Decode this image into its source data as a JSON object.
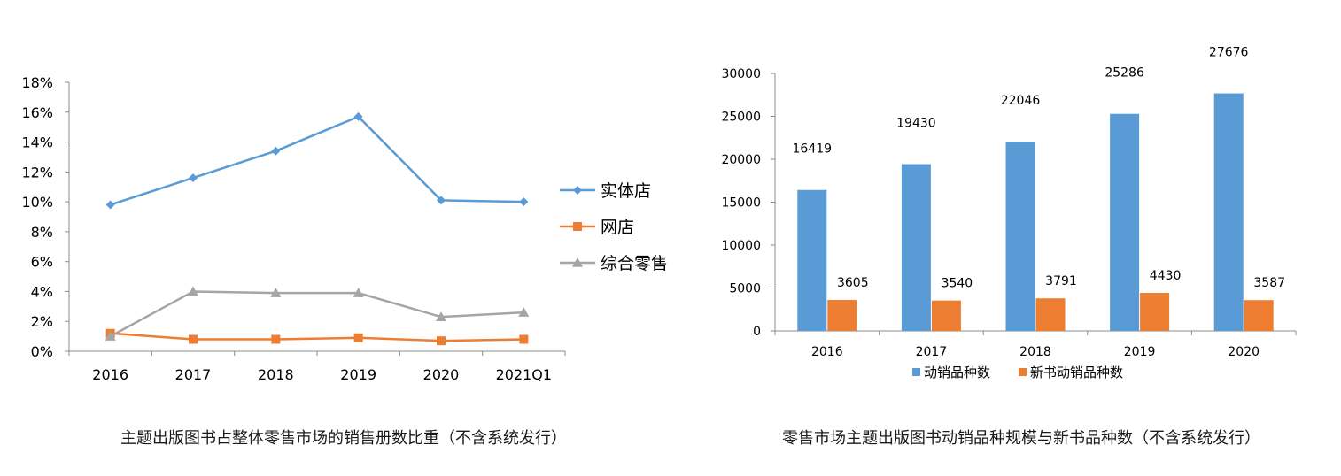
{
  "chart_data": [
    {
      "type": "line",
      "title": "",
      "caption": "主题出版图书占整体零售市场的销售册数比重（不含系统发行）",
      "categories": [
        "2016",
        "2017",
        "2018",
        "2019",
        "2020",
        "2021Q1"
      ],
      "ylim": [
        0,
        18
      ],
      "yticks": [
        "0%",
        "2%",
        "4%",
        "6%",
        "8%",
        "10%",
        "12%",
        "14%",
        "16%",
        "18%"
      ],
      "grid": false,
      "legend_position": "right",
      "series": [
        {
          "name": "实体店",
          "color": "#5B9BD5",
          "marker": "diamond",
          "values": [
            9.8,
            11.6,
            13.4,
            15.7,
            10.1,
            10.0
          ]
        },
        {
          "name": "网店",
          "color": "#ED7D31",
          "marker": "square",
          "values": [
            1.2,
            0.8,
            0.8,
            0.9,
            0.7,
            0.8
          ]
        },
        {
          "name": "综合零售",
          "color": "#A5A5A5",
          "marker": "triangle",
          "values": [
            1.0,
            4.0,
            3.9,
            3.9,
            2.3,
            2.6
          ]
        }
      ]
    },
    {
      "type": "bar",
      "title": "",
      "caption": "零售市场主题出版图书动销品种规模与新书品种数（不含系统发行）",
      "categories": [
        "2016",
        "2017",
        "2018",
        "2019",
        "2020"
      ],
      "ylim": [
        0,
        30000
      ],
      "yticks": [
        "0",
        "5000",
        "10000",
        "15000",
        "20000",
        "25000",
        "30000"
      ],
      "grid": false,
      "legend_position": "bottom",
      "series": [
        {
          "name": "动销品种数",
          "color": "#5B9BD5",
          "values": [
            16419,
            19430,
            22046,
            25286,
            27676
          ]
        },
        {
          "name": "新书动销品种数",
          "color": "#ED7D31",
          "values": [
            3605,
            3540,
            3791,
            4430,
            3587
          ]
        }
      ]
    }
  ]
}
